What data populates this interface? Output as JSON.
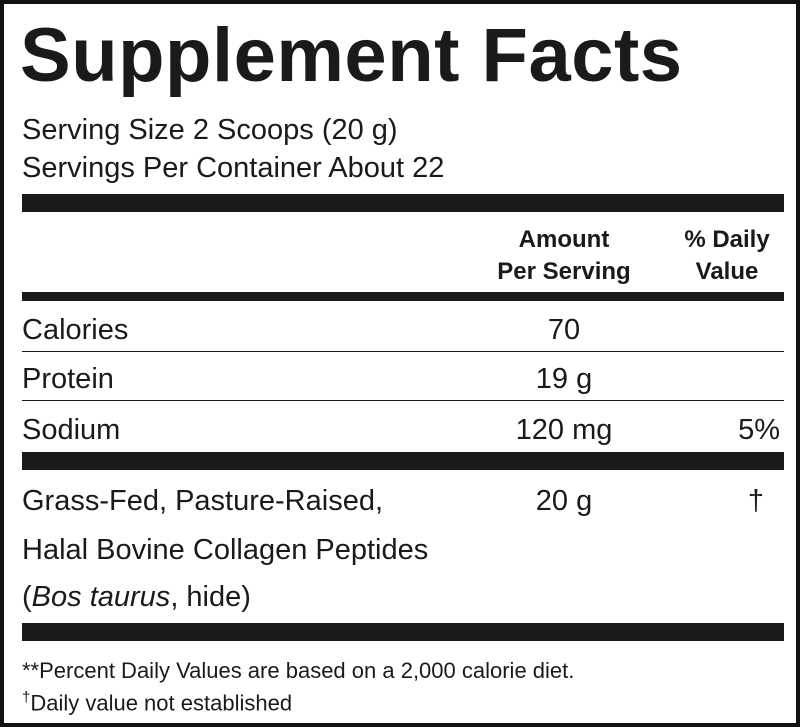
{
  "title": "Supplement Facts",
  "serving": [
    "Serving Size 2 Scoops (20 g)",
    "Servings Per Container About 22"
  ],
  "header": {
    "amount": [
      "Amount",
      "Per Serving"
    ],
    "daily_value": [
      "% Daily",
      "Value"
    ]
  },
  "rows": [
    {
      "name": "Calories",
      "amount": "70"
    },
    {
      "name": "Protein",
      "amount": "19 g"
    },
    {
      "name": "Sodium",
      "amount": "120 mg",
      "daily_value": "5%"
    }
  ],
  "ingredient": {
    "lines": [
      "Grass-Fed, Pasture-Raised,",
      "Halal Bovine Collagen Peptides"
    ],
    "source": [
      "(",
      "Bos taurus",
      ", hide)"
    ],
    "amount": "20 g",
    "daily_value": "†"
  },
  "footnotes": [
    {
      "text": "**Percent Daily Values are based on a 2,000 calorie diet."
    },
    {
      "mark": "†",
      "text": "Daily value not established"
    }
  ]
}
